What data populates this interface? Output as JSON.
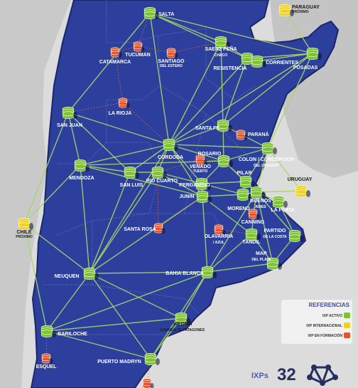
{
  "legend": {
    "title": "REFERENCIAS",
    "items": [
      {
        "label": "IXP ACTIVO",
        "color": "#7cc431"
      },
      {
        "label": "IXP INTERNACIONAL",
        "color": "#f2d21b"
      },
      {
        "label": "IXP EN FORMACIÓN",
        "color": "#e8542a"
      }
    ]
  },
  "ixp_count": {
    "label": "IXPs",
    "value": "32"
  },
  "colors": {
    "land": "#2c3f9c",
    "land_edge": "#1c2668",
    "background": "#dcdcdc",
    "link": "#a5d66b",
    "planned_link": "#e06b2e",
    "active": "#7cc431",
    "international": "#f2d21b",
    "forming": "#e8542a"
  },
  "nodes": [
    {
      "id": "salta",
      "type": "active",
      "name": "SALTA",
      "sub": ""
    },
    {
      "id": "paraguay",
      "type": "international",
      "name": "PARAGUAY",
      "sub": "PRÓXIMO"
    },
    {
      "id": "tucuman",
      "type": "forming",
      "name": "TUCUMAN",
      "sub": ""
    },
    {
      "id": "catamarca",
      "type": "forming",
      "name": "CATAMARCA",
      "sub": ""
    },
    {
      "id": "santiago",
      "type": "forming",
      "name": "SANTIAGO",
      "sub": "DEL ESTERO"
    },
    {
      "id": "saenz",
      "type": "active",
      "name": "SAENZ PEÑA",
      "sub": "CHACO"
    },
    {
      "id": "resistencia",
      "type": "active",
      "name": "RESISTENCIA",
      "sub": ""
    },
    {
      "id": "corrientes",
      "type": "active",
      "name": "CORRIENTES",
      "sub": ""
    },
    {
      "id": "posadas",
      "type": "active",
      "name": "POSADAS",
      "sub": ""
    },
    {
      "id": "larioja",
      "type": "forming",
      "name": "LA RIOJA",
      "sub": ""
    },
    {
      "id": "sanjuan",
      "type": "active",
      "name": "SAN JUAN",
      "sub": ""
    },
    {
      "id": "santafe",
      "type": "active",
      "name": "SANTA FE",
      "sub": ""
    },
    {
      "id": "parana",
      "type": "forming",
      "name": "PARANÁ",
      "sub": ""
    },
    {
      "id": "cordoba",
      "type": "active",
      "name": "CORDOBA",
      "sub": ""
    },
    {
      "id": "colon",
      "type": "active",
      "name": "COLON / CONCEPCION",
      "sub": "DEL URUGUAY"
    },
    {
      "id": "rosario",
      "type": "active",
      "name": "ROSARIO",
      "sub": ""
    },
    {
      "id": "mendoza",
      "type": "active",
      "name": "MENDOZA",
      "sub": ""
    },
    {
      "id": "sanluis",
      "type": "active",
      "name": "SAN LUIS",
      "sub": ""
    },
    {
      "id": "riocuarto",
      "type": "active",
      "name": "RIO CUARTO",
      "sub": ""
    },
    {
      "id": "venado",
      "type": "forming",
      "name": "VENADO",
      "sub": "TUERTO"
    },
    {
      "id": "pilar",
      "type": "active",
      "name": "PILAR",
      "sub": ""
    },
    {
      "id": "uruguay",
      "type": "international",
      "name": "URUGUAY",
      "sub": ""
    },
    {
      "id": "pergamino",
      "type": "active",
      "name": "PERGAMINO",
      "sub": ""
    },
    {
      "id": "junin",
      "type": "active",
      "name": "JUNIN",
      "sub": ""
    },
    {
      "id": "moreno",
      "type": "active",
      "name": "MORENO",
      "sub": ""
    },
    {
      "id": "buenosaires",
      "type": "active",
      "name": "BUENOS",
      "sub": "AIRES"
    },
    {
      "id": "laplata",
      "type": "active",
      "name": "LA PLATA",
      "sub": ""
    },
    {
      "id": "canning",
      "type": "forming",
      "name": "CANNING",
      "sub": ""
    },
    {
      "id": "chile",
      "type": "international",
      "name": "CHILE",
      "sub": "PRÓXIMO"
    },
    {
      "id": "santarosa",
      "type": "forming",
      "name": "SANTA ROSA",
      "sub": ""
    },
    {
      "id": "olavarria",
      "type": "forming",
      "name": "OLAVARRIA",
      "sub": "/ AZUL"
    },
    {
      "id": "tandil",
      "type": "active",
      "name": "TANDIL",
      "sub": ""
    },
    {
      "id": "partido",
      "type": "active",
      "name": "PARTIDO",
      "sub": "DE LA COSTA"
    },
    {
      "id": "mardelplata",
      "type": "active",
      "name": "MAR",
      "sub": "DEL PLATA"
    },
    {
      "id": "neuquen",
      "type": "active",
      "name": "NEUQUEN",
      "sub": ""
    },
    {
      "id": "bahiablanca",
      "type": "active",
      "name": "BAHIA BLANCA",
      "sub": ""
    },
    {
      "id": "viedma",
      "type": "active",
      "name": "VIEDMA",
      "sub": "CARMEN DE PATAGONES"
    },
    {
      "id": "bariloche",
      "type": "active",
      "name": "BARILOCHE",
      "sub": ""
    },
    {
      "id": "esquel",
      "type": "forming",
      "name": "ESQUEL",
      "sub": ""
    },
    {
      "id": "puertomadryn",
      "type": "active",
      "name": "PUERTO MADRYN",
      "sub": ""
    },
    {
      "id": "south",
      "type": "forming",
      "name": "",
      "sub": ""
    }
  ],
  "links": [
    [
      "salta",
      "saenz"
    ],
    [
      "salta",
      "resistencia"
    ],
    [
      "salta",
      "cordoba"
    ],
    [
      "salta",
      "sanjuan"
    ],
    [
      "salta",
      "posadas"
    ],
    [
      "saenz",
      "resistencia"
    ],
    [
      "saenz",
      "cordoba"
    ],
    [
      "saenz",
      "santafe"
    ],
    [
      "resistencia",
      "corrientes"
    ],
    [
      "resistencia",
      "posadas"
    ],
    [
      "resistencia",
      "santafe"
    ],
    [
      "resistencia",
      "cordoba"
    ],
    [
      "corrientes",
      "posadas"
    ],
    [
      "posadas",
      "paraguay"
    ],
    [
      "posadas",
      "colon"
    ],
    [
      "posadas",
      "santafe"
    ],
    [
      "posadas",
      "cordoba"
    ],
    [
      "sanjuan",
      "mendoza"
    ],
    [
      "sanjuan",
      "cordoba"
    ],
    [
      "sanjuan",
      "sanluis"
    ],
    [
      "mendoza",
      "cordoba"
    ],
    [
      "mendoza",
      "sanluis"
    ],
    [
      "mendoza",
      "neuquen"
    ],
    [
      "mendoza",
      "chile"
    ],
    [
      "mendoza",
      "junin"
    ],
    [
      "mendoza",
      "rosario"
    ],
    [
      "cordoba",
      "santafe"
    ],
    [
      "cordoba",
      "rosario"
    ],
    [
      "cordoba",
      "sanluis"
    ],
    [
      "cordoba",
      "riocuarto"
    ],
    [
      "cordoba",
      "colon"
    ],
    [
      "cordoba",
      "junin"
    ],
    [
      "cordoba",
      "neuquen"
    ],
    [
      "cordoba",
      "pergamino"
    ],
    [
      "santafe",
      "colon"
    ],
    [
      "santafe",
      "rosario"
    ],
    [
      "rosario",
      "pilar"
    ],
    [
      "rosario",
      "pergamino"
    ],
    [
      "rosario",
      "buenosaires"
    ],
    [
      "rosario",
      "colon"
    ],
    [
      "colon",
      "pilar"
    ],
    [
      "colon",
      "buenosaires"
    ],
    [
      "colon",
      "uruguay"
    ],
    [
      "sanluis",
      "riocuarto"
    ],
    [
      "sanluis",
      "neuquen"
    ],
    [
      "riocuarto",
      "junin"
    ],
    [
      "riocuarto",
      "neuquen"
    ],
    [
      "riocuarto",
      "pergamino"
    ],
    [
      "pergamino",
      "junin"
    ],
    [
      "pergamino",
      "moreno"
    ],
    [
      "pergamino",
      "pilar"
    ],
    [
      "junin",
      "moreno"
    ],
    [
      "junin",
      "bahiablanca"
    ],
    [
      "junin",
      "neuquen"
    ],
    [
      "junin",
      "tandil"
    ],
    [
      "pilar",
      "moreno"
    ],
    [
      "pilar",
      "buenosaires"
    ],
    [
      "moreno",
      "buenosaires"
    ],
    [
      "buenosaires",
      "laplata"
    ],
    [
      "buenosaires",
      "partido"
    ],
    [
      "buenosaires",
      "tandil"
    ],
    [
      "buenosaires",
      "mardelplata"
    ],
    [
      "buenosaires",
      "uruguay"
    ],
    [
      "laplata",
      "partido"
    ],
    [
      "partido",
      "mardelplata"
    ],
    [
      "tandil",
      "mardelplata"
    ],
    [
      "tandil",
      "bahiablanca"
    ],
    [
      "mardelplata",
      "bahiablanca"
    ],
    [
      "neuquen",
      "bahiablanca"
    ],
    [
      "neuquen",
      "bariloche"
    ],
    [
      "neuquen",
      "viedma"
    ],
    [
      "neuquen",
      "chile"
    ],
    [
      "neuquen",
      "puertomadryn"
    ],
    [
      "bahiablanca",
      "viedma"
    ],
    [
      "bahiablanca",
      "bariloche"
    ],
    [
      "bahiablanca",
      "puertomadryn"
    ],
    [
      "bahiablanca",
      "buenosaires"
    ],
    [
      "viedma",
      "bariloche"
    ],
    [
      "viedma",
      "puertomadryn"
    ],
    [
      "bariloche",
      "puertomadryn"
    ],
    [
      "bariloche",
      "chile"
    ],
    [
      "chile",
      "sanjuan"
    ]
  ],
  "planned_links": [
    [
      "tucuman",
      "catamarca"
    ],
    [
      "tucuman",
      "santiago"
    ],
    [
      "tucuman",
      "salta"
    ],
    [
      "catamarca",
      "larioja"
    ],
    [
      "santiago",
      "saenz"
    ],
    [
      "larioja",
      "cordoba"
    ],
    [
      "larioja",
      "sanjuan"
    ],
    [
      "parana",
      "santafe"
    ],
    [
      "venado",
      "riocuarto"
    ],
    [
      "venado",
      "rosario"
    ],
    [
      "santarosa",
      "riocuarto"
    ],
    [
      "santarosa",
      "junin"
    ],
    [
      "olavarria",
      "tandil"
    ],
    [
      "canning",
      "buenosaires"
    ],
    [
      "esquel",
      "bariloche"
    ],
    [
      "south",
      "puertomadryn"
    ]
  ]
}
